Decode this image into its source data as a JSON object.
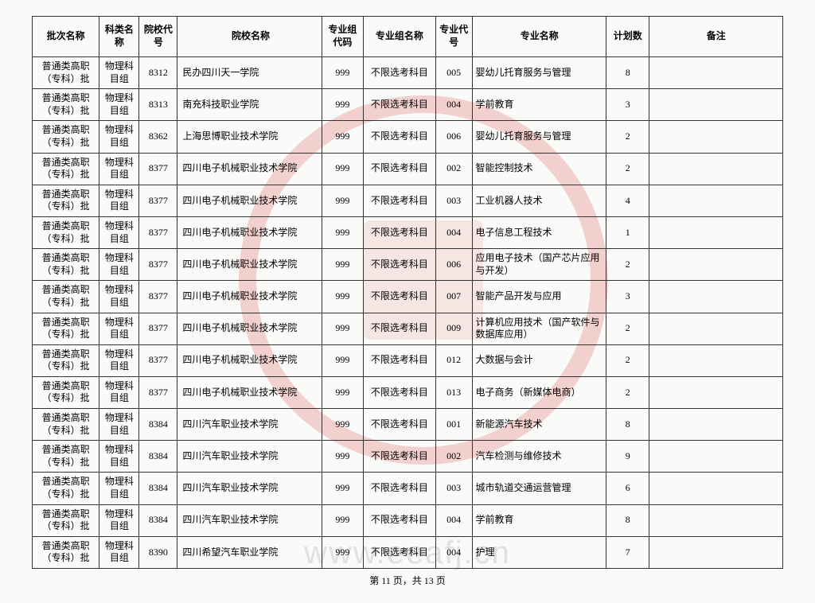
{
  "headers": {
    "batch": "批次名称",
    "subject": "科类名称",
    "schoolcode": "院校代号",
    "schoolname": "院校名称",
    "groupcode": "专业组代码",
    "groupname": "专业组名称",
    "majorcode": "专业代号",
    "majorname": "专业名称",
    "plan": "计划数",
    "remark": "备注"
  },
  "rows": [
    {
      "batch": "普通类高职（专科）批",
      "subject": "物理科目组",
      "schoolcode": "8312",
      "schoolname": "民办四川天一学院",
      "groupcode": "999",
      "groupname": "不限选考科目",
      "majorcode": "005",
      "majorname": "婴幼儿托育服务与管理",
      "plan": "8",
      "remark": ""
    },
    {
      "batch": "普通类高职（专科）批",
      "subject": "物理科目组",
      "schoolcode": "8313",
      "schoolname": "南充科技职业学院",
      "groupcode": "999",
      "groupname": "不限选考科目",
      "majorcode": "004",
      "majorname": "学前教育",
      "plan": "3",
      "remark": ""
    },
    {
      "batch": "普通类高职（专科）批",
      "subject": "物理科目组",
      "schoolcode": "8362",
      "schoolname": "上海思博职业技术学院",
      "groupcode": "999",
      "groupname": "不限选考科目",
      "majorcode": "006",
      "majorname": "婴幼儿托育服务与管理",
      "plan": "2",
      "remark": ""
    },
    {
      "batch": "普通类高职（专科）批",
      "subject": "物理科目组",
      "schoolcode": "8377",
      "schoolname": "四川电子机械职业技术学院",
      "groupcode": "999",
      "groupname": "不限选考科目",
      "majorcode": "002",
      "majorname": "智能控制技术",
      "plan": "2",
      "remark": ""
    },
    {
      "batch": "普通类高职（专科）批",
      "subject": "物理科目组",
      "schoolcode": "8377",
      "schoolname": "四川电子机械职业技术学院",
      "groupcode": "999",
      "groupname": "不限选考科目",
      "majorcode": "003",
      "majorname": "工业机器人技术",
      "plan": "4",
      "remark": ""
    },
    {
      "batch": "普通类高职（专科）批",
      "subject": "物理科目组",
      "schoolcode": "8377",
      "schoolname": "四川电子机械职业技术学院",
      "groupcode": "999",
      "groupname": "不限选考科目",
      "majorcode": "004",
      "majorname": "电子信息工程技术",
      "plan": "1",
      "remark": ""
    },
    {
      "batch": "普通类高职（专科）批",
      "subject": "物理科目组",
      "schoolcode": "8377",
      "schoolname": "四川电子机械职业技术学院",
      "groupcode": "999",
      "groupname": "不限选考科目",
      "majorcode": "006",
      "majorname": "应用电子技术（国产芯片应用与开发）",
      "plan": "2",
      "remark": ""
    },
    {
      "batch": "普通类高职（专科）批",
      "subject": "物理科目组",
      "schoolcode": "8377",
      "schoolname": "四川电子机械职业技术学院",
      "groupcode": "999",
      "groupname": "不限选考科目",
      "majorcode": "007",
      "majorname": "智能产品开发与应用",
      "plan": "3",
      "remark": ""
    },
    {
      "batch": "普通类高职（专科）批",
      "subject": "物理科目组",
      "schoolcode": "8377",
      "schoolname": "四川电子机械职业技术学院",
      "groupcode": "999",
      "groupname": "不限选考科目",
      "majorcode": "009",
      "majorname": "计算机应用技术（国产软件与数据库应用）",
      "plan": "2",
      "remark": ""
    },
    {
      "batch": "普通类高职（专科）批",
      "subject": "物理科目组",
      "schoolcode": "8377",
      "schoolname": "四川电子机械职业技术学院",
      "groupcode": "999",
      "groupname": "不限选考科目",
      "majorcode": "012",
      "majorname": "大数据与会计",
      "plan": "2",
      "remark": ""
    },
    {
      "batch": "普通类高职（专科）批",
      "subject": "物理科目组",
      "schoolcode": "8377",
      "schoolname": "四川电子机械职业技术学院",
      "groupcode": "999",
      "groupname": "不限选考科目",
      "majorcode": "013",
      "majorname": "电子商务（新媒体电商）",
      "plan": "2",
      "remark": ""
    },
    {
      "batch": "普通类高职（专科）批",
      "subject": "物理科目组",
      "schoolcode": "8384",
      "schoolname": "四川汽车职业技术学院",
      "groupcode": "999",
      "groupname": "不限选考科目",
      "majorcode": "001",
      "majorname": "新能源汽车技术",
      "plan": "8",
      "remark": ""
    },
    {
      "batch": "普通类高职（专科）批",
      "subject": "物理科目组",
      "schoolcode": "8384",
      "schoolname": "四川汽车职业技术学院",
      "groupcode": "999",
      "groupname": "不限选考科目",
      "majorcode": "002",
      "majorname": "汽车检测与维修技术",
      "plan": "9",
      "remark": ""
    },
    {
      "batch": "普通类高职（专科）批",
      "subject": "物理科目组",
      "schoolcode": "8384",
      "schoolname": "四川汽车职业技术学院",
      "groupcode": "999",
      "groupname": "不限选考科目",
      "majorcode": "003",
      "majorname": "城市轨道交通运营管理",
      "plan": "6",
      "remark": ""
    },
    {
      "batch": "普通类高职（专科）批",
      "subject": "物理科目组",
      "schoolcode": "8384",
      "schoolname": "四川汽车职业技术学院",
      "groupcode": "999",
      "groupname": "不限选考科目",
      "majorcode": "004",
      "majorname": "学前教育",
      "plan": "8",
      "remark": ""
    },
    {
      "batch": "普通类高职（专科）批",
      "subject": "物理科目组",
      "schoolcode": "8390",
      "schoolname": "四川希望汽车职业学院",
      "groupcode": "999",
      "groupname": "不限选考科目",
      "majorcode": "004",
      "majorname": "护理",
      "plan": "7",
      "remark": ""
    }
  ],
  "footer": "第 11 页，共 13 页",
  "watermark": "www.eeafj.cn",
  "colors": {
    "border": "#333333",
    "background": "#fafaf8",
    "stamp": "rgba(210,60,60,0.22)",
    "watermark": "rgba(200,200,200,0.5)"
  }
}
